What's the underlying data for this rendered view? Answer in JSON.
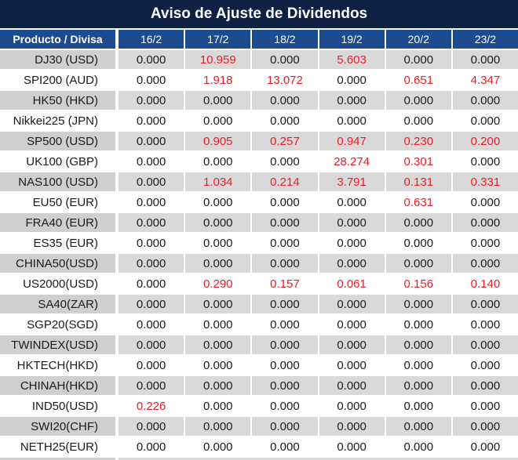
{
  "title": "Aviso de Ajuste de Dividendos",
  "colors": {
    "title_bg": "#0d2142",
    "header_bg": "#1c4b8f",
    "gray_label": "#d0cece",
    "gray_value": "#d9d9d9",
    "text_color": "#1a1a1a",
    "red": "#ed1c24"
  },
  "chart_data": {
    "type": "table",
    "title": "Aviso de Ajuste de Dividendos",
    "columns": [
      "Producto / Divisa",
      "16/2",
      "17/2",
      "18/2",
      "19/2",
      "20/2",
      "23/2"
    ],
    "rows": [
      {
        "product": "DJ30 (USD)",
        "values": [
          "0.000",
          "10.959",
          "0.000",
          "5.603",
          "0.000",
          "0.000"
        ]
      },
      {
        "product": "SPI200 (AUD)",
        "values": [
          "0.000",
          "1.918",
          "13.072",
          "0.000",
          "0.651",
          "4.347"
        ]
      },
      {
        "product": "HK50 (HKD)",
        "values": [
          "0.000",
          "0.000",
          "0.000",
          "0.000",
          "0.000",
          "0.000"
        ]
      },
      {
        "product": "Nikkei225 (JPN)",
        "values": [
          "0.000",
          "0.000",
          "0.000",
          "0.000",
          "0.000",
          "0.000"
        ]
      },
      {
        "product": "SP500 (USD)",
        "values": [
          "0.000",
          "0.905",
          "0.257",
          "0.947",
          "0.230",
          "0.200"
        ]
      },
      {
        "product": "UK100 (GBP)",
        "values": [
          "0.000",
          "0.000",
          "0.000",
          "28.274",
          "0.301",
          "0.000"
        ]
      },
      {
        "product": "NAS100 (USD)",
        "values": [
          "0.000",
          "1.034",
          "0.214",
          "3.791",
          "0.131",
          "0.331"
        ]
      },
      {
        "product": "EU50 (EUR)",
        "values": [
          "0.000",
          "0.000",
          "0.000",
          "0.000",
          "0.631",
          "0.000"
        ]
      },
      {
        "product": "FRA40 (EUR)",
        "values": [
          "0.000",
          "0.000",
          "0.000",
          "0.000",
          "0.000",
          "0.000"
        ]
      },
      {
        "product": "ES35 (EUR)",
        "values": [
          "0.000",
          "0.000",
          "0.000",
          "0.000",
          "0.000",
          "0.000"
        ]
      },
      {
        "product": "CHINA50(USD)",
        "values": [
          "0.000",
          "0.000",
          "0.000",
          "0.000",
          "0.000",
          "0.000"
        ]
      },
      {
        "product": "US2000(USD)",
        "values": [
          "0.000",
          "0.290",
          "0.157",
          "0.061",
          "0.156",
          "0.140"
        ]
      },
      {
        "product": "SA40(ZAR)",
        "values": [
          "0.000",
          "0.000",
          "0.000",
          "0.000",
          "0.000",
          "0.000"
        ]
      },
      {
        "product": "SGP20(SGD)",
        "values": [
          "0.000",
          "0.000",
          "0.000",
          "0.000",
          "0.000",
          "0.000"
        ]
      },
      {
        "product": "TWINDEX(USD)",
        "values": [
          "0.000",
          "0.000",
          "0.000",
          "0.000",
          "0.000",
          "0.000"
        ]
      },
      {
        "product": "HKTECH(HKD)",
        "values": [
          "0.000",
          "0.000",
          "0.000",
          "0.000",
          "0.000",
          "0.000"
        ]
      },
      {
        "product": "CHINAH(HKD)",
        "values": [
          "0.000",
          "0.000",
          "0.000",
          "0.000",
          "0.000",
          "0.000"
        ]
      },
      {
        "product": "IND50(USD)",
        "values": [
          "0.226",
          "0.000",
          "0.000",
          "0.000",
          "0.000",
          "0.000"
        ]
      },
      {
        "product": "SWI20(CHF)",
        "values": [
          "0.000",
          "0.000",
          "0.000",
          "0.000",
          "0.000",
          "0.000"
        ]
      },
      {
        "product": "NETH25(EUR)",
        "values": [
          "0.000",
          "0.000",
          "0.000",
          "0.000",
          "0.000",
          "0.000"
        ]
      }
    ]
  },
  "table": {
    "product_header": "Producto / Divisa",
    "date_headers": [
      "16/2",
      "17/2",
      "18/2",
      "19/2",
      "20/2",
      "23/2"
    ],
    "zero_value": "0.000"
  }
}
